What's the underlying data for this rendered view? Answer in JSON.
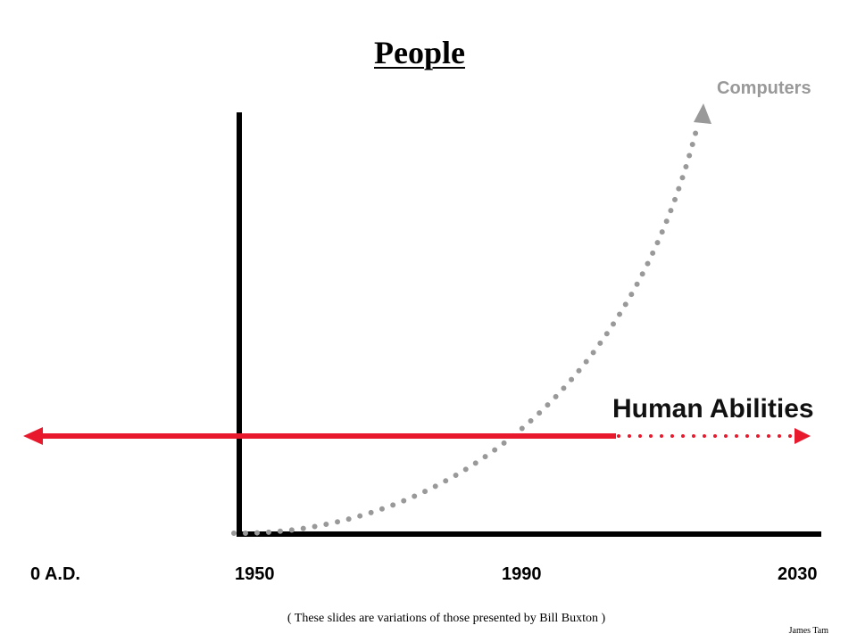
{
  "slide": {
    "title": "People",
    "footnote": "( These slides are variations of those presented by Bill Buxton )",
    "author": "James Tam"
  },
  "diagram": {
    "computers_label": "Computers",
    "human_label": "Human Abilities",
    "timeline_ticks": [
      "0 A.D.",
      "1950",
      "1990",
      "2030"
    ],
    "colors": {
      "axis": "#000000",
      "human_line": "#e8192c",
      "computers_curve": "#999999"
    }
  }
}
